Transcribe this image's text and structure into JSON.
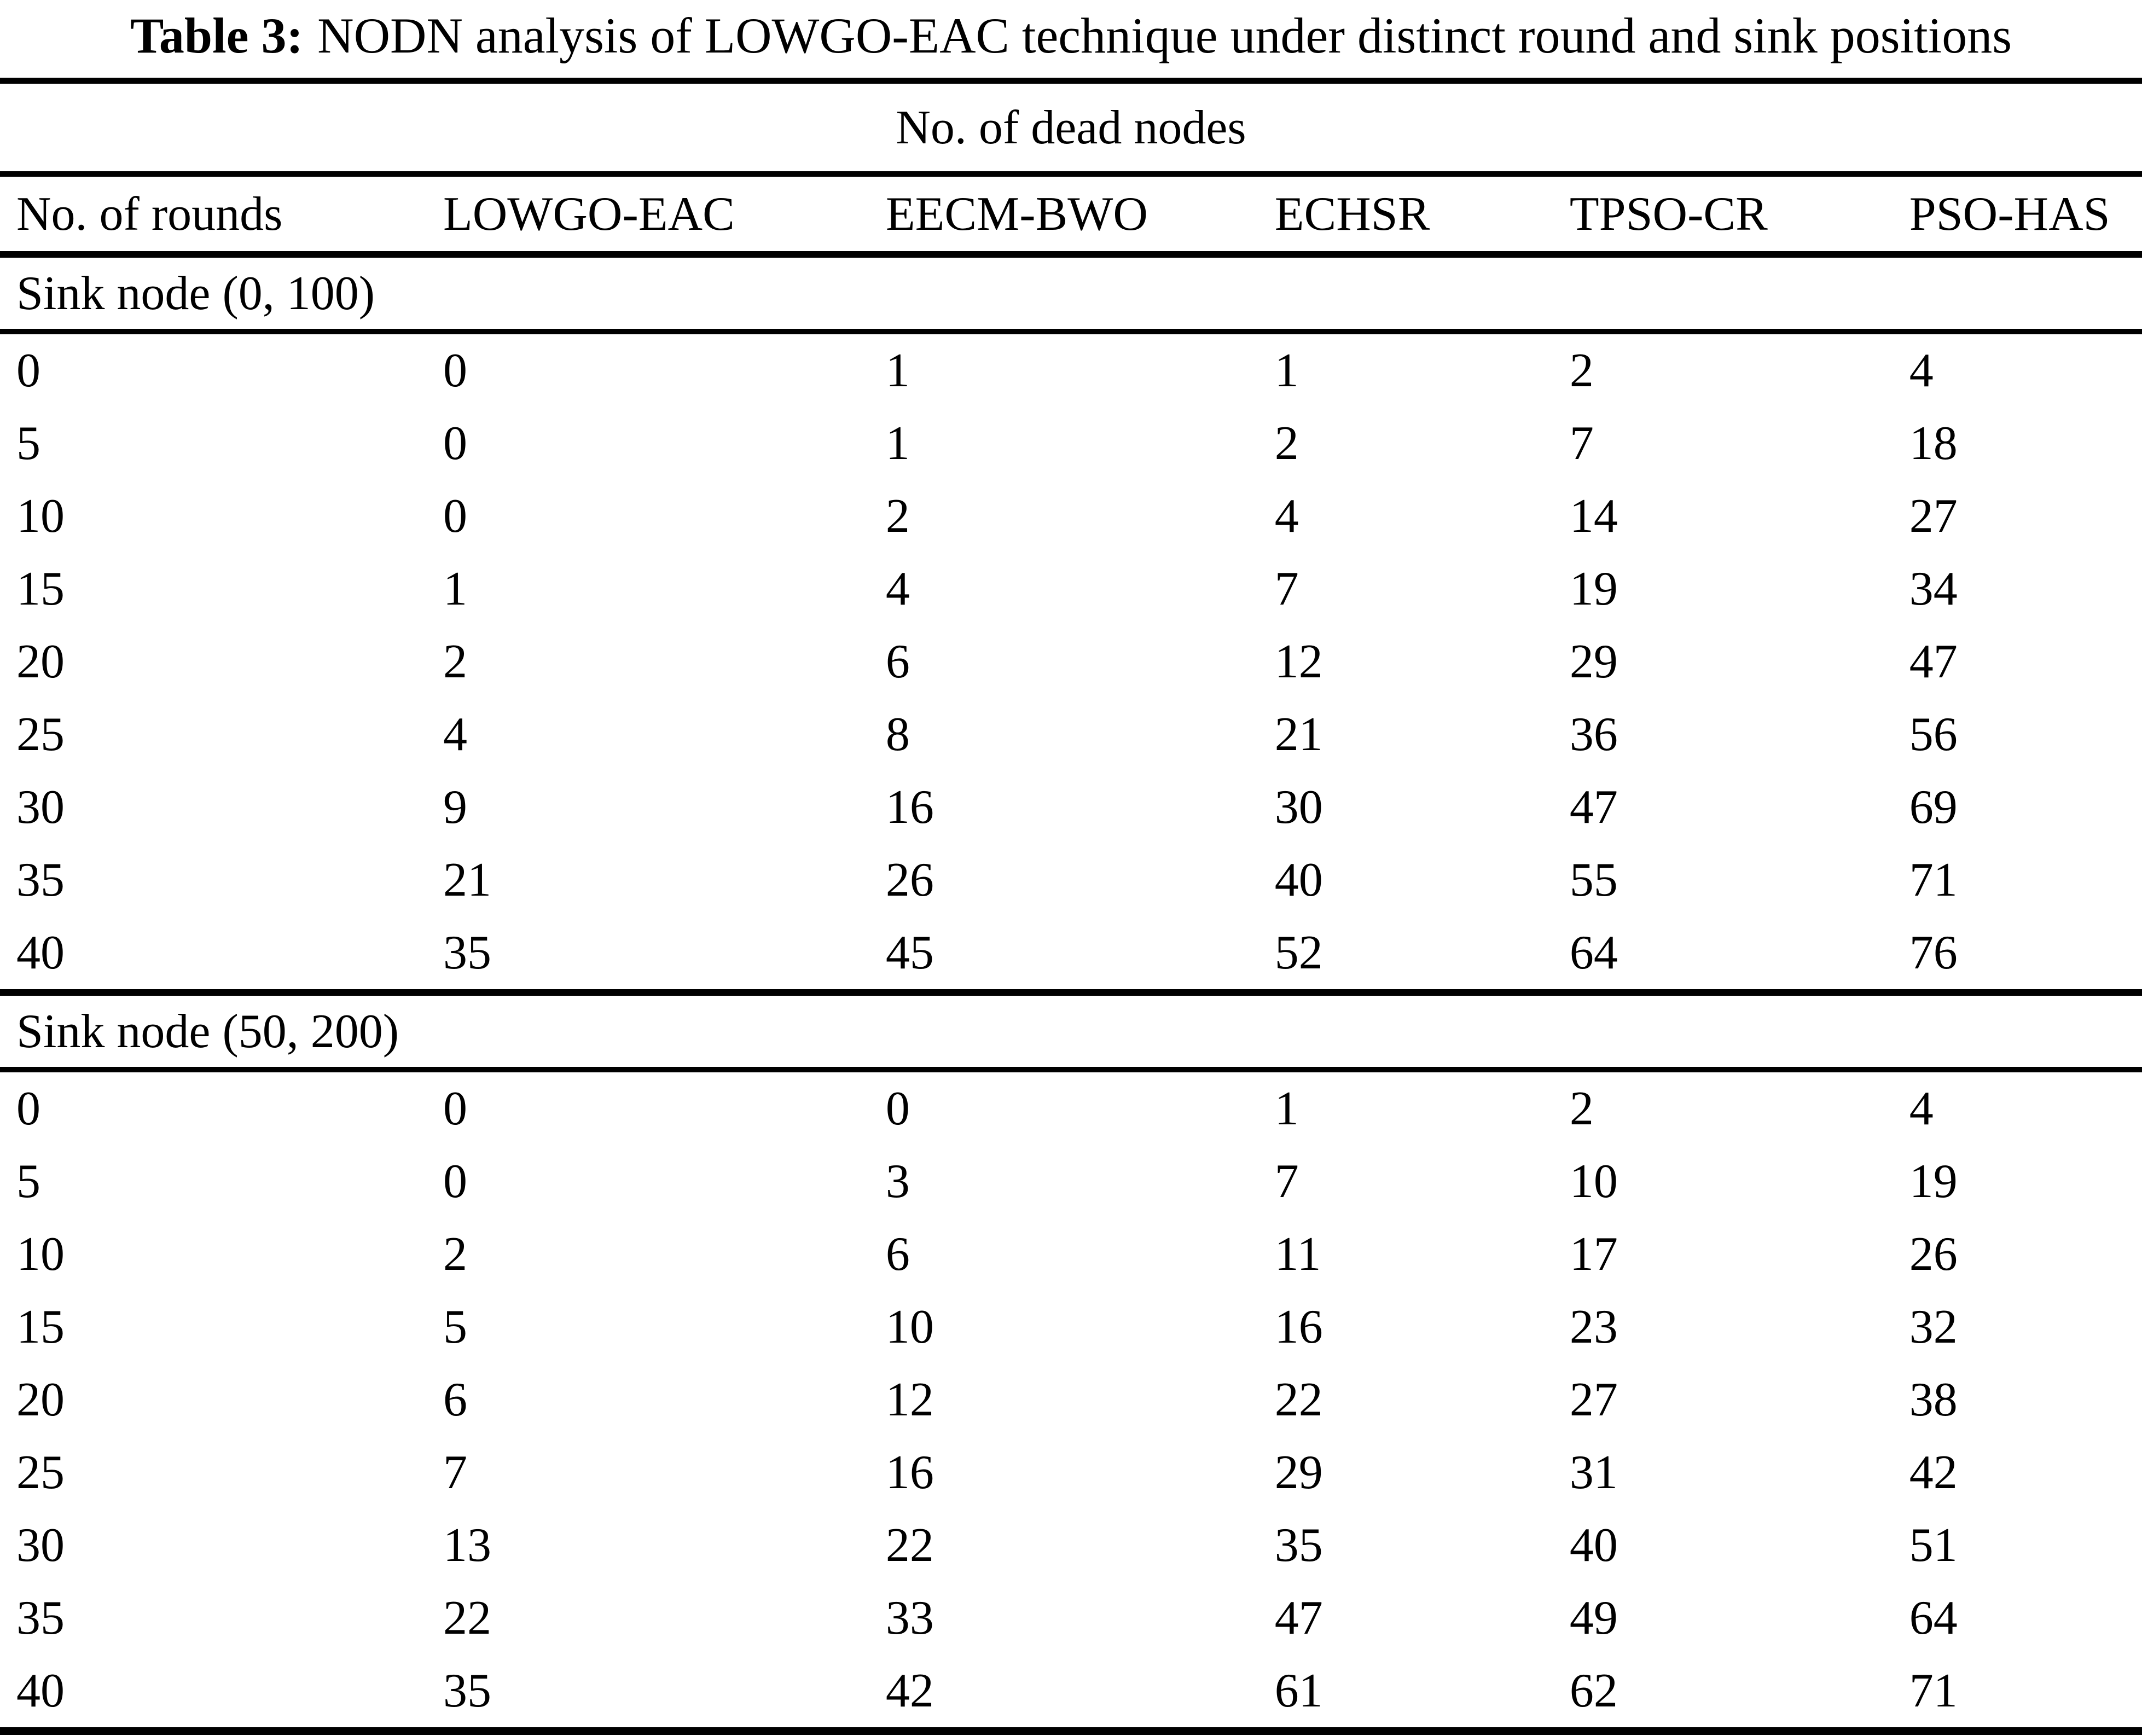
{
  "title": {
    "label": "Table 3:",
    "text": "NODN analysis of LOWGO-EAC technique under distinct round and sink positions"
  },
  "table": {
    "span_header": "No. of dead nodes",
    "columns": [
      "No. of rounds",
      "LOWGO-EAC",
      "EECM-BWO",
      "ECHSR",
      "TPSO-CR",
      "PSO-HAS"
    ],
    "sections": [
      {
        "label": "Sink node (0, 100)",
        "rows": [
          [
            0,
            0,
            1,
            1,
            2,
            4
          ],
          [
            5,
            0,
            1,
            2,
            7,
            18
          ],
          [
            10,
            0,
            2,
            4,
            14,
            27
          ],
          [
            15,
            1,
            4,
            7,
            19,
            34
          ],
          [
            20,
            2,
            6,
            12,
            29,
            47
          ],
          [
            25,
            4,
            8,
            21,
            36,
            56
          ],
          [
            30,
            9,
            16,
            30,
            47,
            69
          ],
          [
            35,
            21,
            26,
            40,
            55,
            71
          ],
          [
            40,
            35,
            45,
            52,
            64,
            76
          ]
        ]
      },
      {
        "label": "Sink node (50, 200)",
        "rows": [
          [
            0,
            0,
            0,
            1,
            2,
            4
          ],
          [
            5,
            0,
            3,
            7,
            10,
            19
          ],
          [
            10,
            2,
            6,
            11,
            17,
            26
          ],
          [
            15,
            5,
            10,
            16,
            23,
            32
          ],
          [
            20,
            6,
            12,
            22,
            27,
            38
          ],
          [
            25,
            7,
            16,
            29,
            31,
            42
          ],
          [
            30,
            13,
            22,
            35,
            40,
            51
          ],
          [
            35,
            22,
            33,
            47,
            49,
            64
          ],
          [
            40,
            35,
            42,
            61,
            62,
            71
          ]
        ]
      }
    ]
  }
}
